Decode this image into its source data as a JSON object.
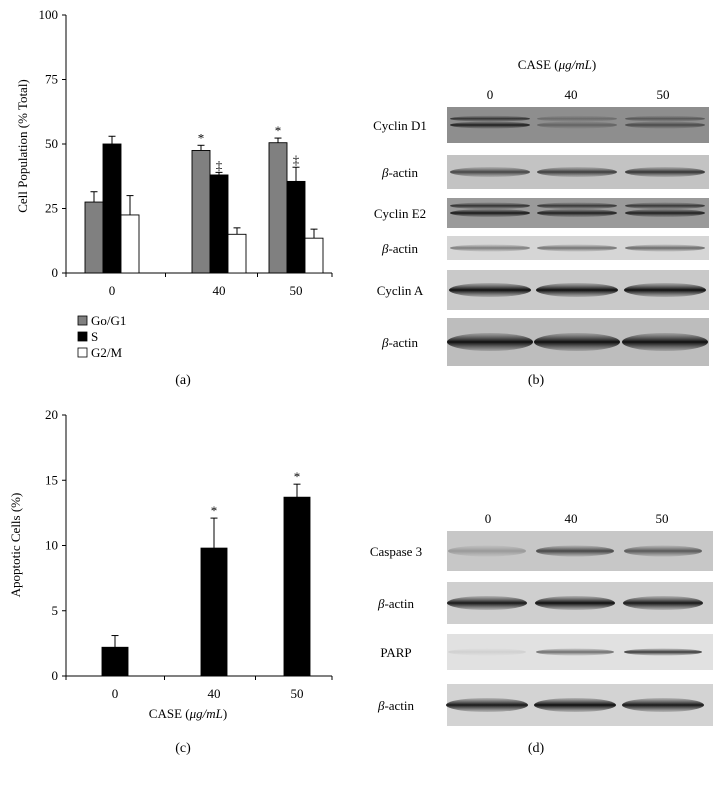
{
  "panels": {
    "a": {
      "letter": "(a)"
    },
    "b": {
      "letter": "(b)"
    },
    "c": {
      "letter": "(c)"
    },
    "d": {
      "letter": "(d)"
    }
  },
  "chart_data": [
    {
      "panel": "a",
      "type": "bar",
      "ylabel": "Cell Population (% Total)",
      "xlabel": "",
      "ylim": [
        0,
        100
      ],
      "yticks": [
        0,
        25,
        50,
        75,
        100
      ],
      "categories": [
        "0",
        "40",
        "50"
      ],
      "legend_position": "bottom-left",
      "series": [
        {
          "name": "Go/G1",
          "color": "#808080",
          "values": [
            27.5,
            47.5,
            50.5
          ],
          "errors": [
            4,
            2,
            1.8
          ],
          "marks": [
            "",
            "*",
            "*"
          ]
        },
        {
          "name": "S",
          "color": "#000000",
          "values": [
            50,
            38,
            35.5
          ],
          "errors": [
            3,
            1,
            5.5
          ],
          "marks": [
            "",
            "‡",
            "‡"
          ]
        },
        {
          "name": "G2/M",
          "color": "#ffffff",
          "values": [
            22.5,
            15,
            13.5
          ],
          "errors": [
            7.5,
            2.5,
            3.5
          ],
          "marks": [
            "",
            "",
            ""
          ]
        }
      ]
    },
    {
      "panel": "c",
      "type": "bar",
      "ylabel": "Apoptotic Cells (%)",
      "xlabel_pre": "CASE (",
      "xlabel_unit": "μg/mL",
      "xlabel_post": ")",
      "ylim": [
        0,
        20
      ],
      "yticks": [
        0,
        5,
        10,
        15,
        20
      ],
      "categories": [
        "0",
        "40",
        "50"
      ],
      "series": [
        {
          "name": "",
          "color": "#000000",
          "values": [
            2.2,
            9.8,
            13.7
          ],
          "errors": [
            0.9,
            2.3,
            1.0
          ],
          "marks": [
            "",
            "*",
            "*"
          ]
        }
      ]
    }
  ],
  "blot_b": {
    "title_pre": "CASE (",
    "title_unit": "μg/mL",
    "title_post": ")",
    "lanes": [
      "0",
      "40",
      "50"
    ],
    "rows": [
      {
        "label": "Cyclin D1",
        "italic_prefix": "",
        "rest": ""
      },
      {
        "label": "",
        "italic_prefix": "β",
        "rest": "-actin"
      },
      {
        "label": "Cyclin E2",
        "italic_prefix": "",
        "rest": ""
      },
      {
        "label": "",
        "italic_prefix": "β",
        "rest": "-actin"
      },
      {
        "label": "Cyclin A",
        "italic_prefix": "",
        "rest": ""
      },
      {
        "label": "",
        "italic_prefix": "β",
        "rest": "-actin"
      }
    ]
  },
  "blot_d": {
    "lanes": [
      "0",
      "40",
      "50"
    ],
    "rows": [
      {
        "label": "Caspase 3",
        "italic_prefix": "",
        "rest": ""
      },
      {
        "label": "",
        "italic_prefix": "β",
        "rest": "-actin"
      },
      {
        "label": "PARP",
        "italic_prefix": "",
        "rest": ""
      },
      {
        "label": "",
        "italic_prefix": "β",
        "rest": "-actin"
      }
    ]
  }
}
